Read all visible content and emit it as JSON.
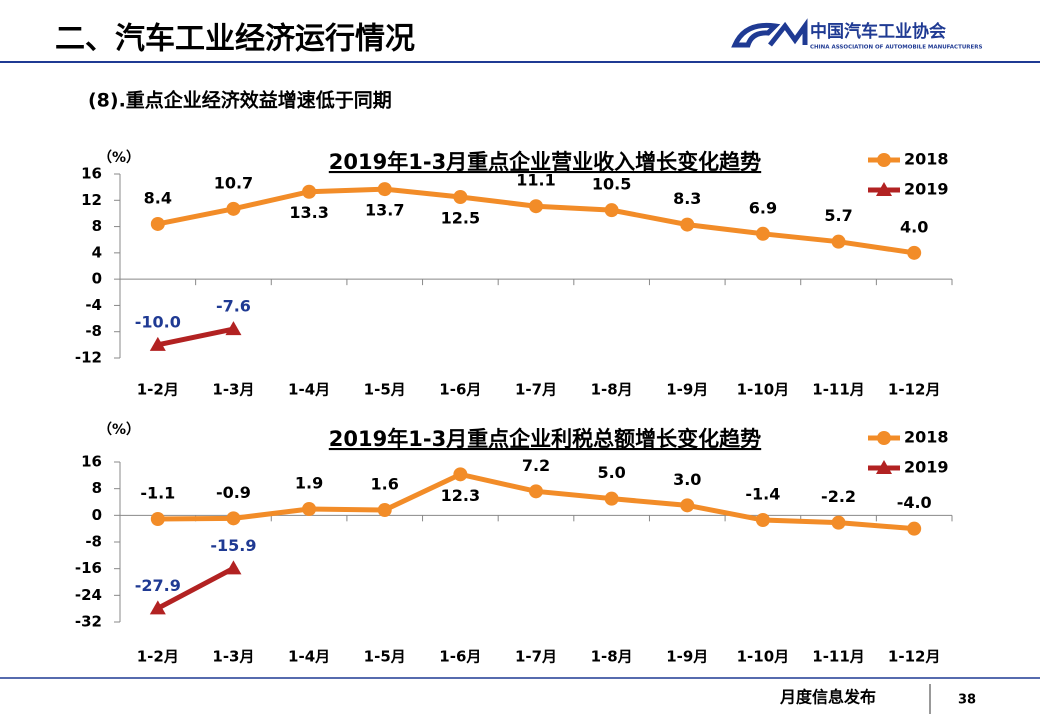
{
  "header": {
    "title": "二、汽车工业经济运行情况",
    "logo_name": "中国汽车工业协会",
    "logo_english": "CHINA ASSOCIATION OF AUTOMOBILE MANUFACTURERS",
    "subtitle": "(8).重点企业经济效益增速低于同期"
  },
  "footer": {
    "text": "月度信息发布",
    "page": "38"
  },
  "chart_data": [
    {
      "type": "line",
      "title": "2019年1-3月重点企业营业收入增长变化趋势",
      "y_label": "（%）",
      "categories": [
        "1-2月",
        "1-3月",
        "1-4月",
        "1-5月",
        "1-6月",
        "1-7月",
        "1-8月",
        "1-9月",
        "1-10月",
        "1-11月",
        "1-12月"
      ],
      "series": [
        {
          "name": "2018",
          "color": "#f28c28",
          "marker": "circle",
          "values": [
            8.4,
            10.7,
            13.3,
            13.7,
            12.5,
            11.1,
            10.5,
            8.3,
            6.9,
            5.7,
            4.0
          ],
          "value_labels": [
            "8.4",
            "10.7",
            "13.3",
            "13.7",
            "12.5",
            "11.1",
            "10.5",
            "8.3",
            "6.9",
            "5.7",
            "4.0"
          ]
        },
        {
          "name": "2019",
          "color": "#b22222",
          "marker": "triangle",
          "values": [
            -10.0,
            -7.6,
            null,
            null,
            null,
            null,
            null,
            null,
            null,
            null,
            null
          ],
          "value_labels": [
            "-10.0",
            "-7.6",
            null,
            null,
            null,
            null,
            null,
            null,
            null,
            null,
            null
          ]
        }
      ],
      "ylim": [
        -12,
        16
      ],
      "yticks": [
        -12,
        -8,
        -4,
        0,
        4,
        8,
        12,
        16
      ],
      "legend": "top-right"
    },
    {
      "type": "line",
      "title": "2019年1-3月重点企业利税总额增长变化趋势",
      "y_label": "（%）",
      "categories": [
        "1-2月",
        "1-3月",
        "1-4月",
        "1-5月",
        "1-6月",
        "1-7月",
        "1-8月",
        "1-9月",
        "1-10月",
        "1-11月",
        "1-12月"
      ],
      "series": [
        {
          "name": "2018",
          "color": "#f28c28",
          "marker": "circle",
          "values": [
            -1.1,
            -0.9,
            1.9,
            1.6,
            12.3,
            7.2,
            5.0,
            3.0,
            -1.4,
            -2.2,
            -4.0
          ],
          "value_labels": [
            "-1.1",
            "-0.9",
            "1.9",
            "1.6",
            "12.3",
            "7.2",
            "5.0",
            "3.0",
            "-1.4",
            "-2.2",
            "-4.0"
          ]
        },
        {
          "name": "2019",
          "color": "#b22222",
          "marker": "triangle",
          "values": [
            -27.9,
            -15.9,
            null,
            null,
            null,
            null,
            null,
            null,
            null,
            null,
            null
          ],
          "value_labels": [
            "-27.9",
            "-15.9",
            null,
            null,
            null,
            null,
            null,
            null,
            null,
            null,
            null
          ]
        }
      ],
      "ylim": [
        -32,
        16
      ],
      "yticks": [
        -32,
        -24,
        -16,
        -8,
        0,
        8,
        16
      ],
      "legend": "top-right"
    }
  ]
}
